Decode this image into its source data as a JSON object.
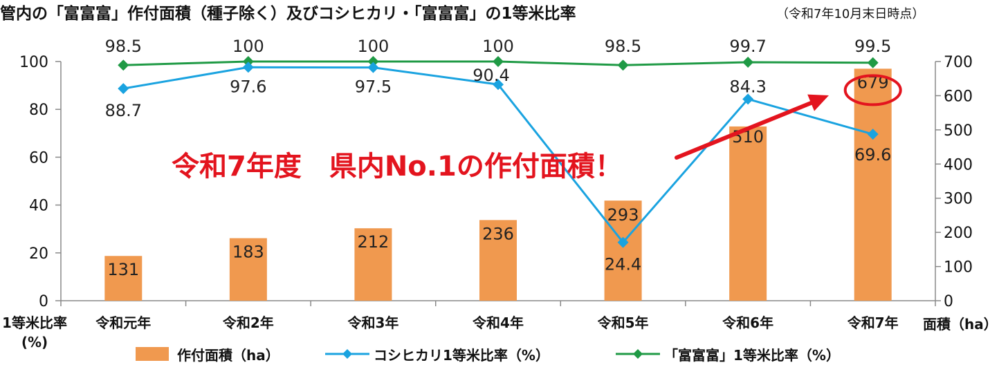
{
  "title": "管内の「富富富」作付面積（種子除く）及びコシヒカリ・「富富富」の1等米比率",
  "note": "（令和7年10月末日時点）",
  "callout": "令和7年度　県内No.1の作付面積！",
  "colors": {
    "bar": "#f0994f",
    "koshihikari": "#1aa3e0",
    "fufufu": "#1f9a45",
    "callout": "#e3141e",
    "axis": "#888888"
  },
  "chart_data": {
    "type": "bar",
    "categories": [
      "令和元年",
      "令和2年",
      "令和3年",
      "令和4年",
      "令和5年",
      "令和6年",
      "令和7年"
    ],
    "y_left": {
      "label": "1等米比率(%)",
      "ylim": [
        0,
        100
      ],
      "ticks": [
        0,
        20,
        40,
        60,
        80,
        100
      ]
    },
    "y_right": {
      "label": "面積（ha）",
      "ylim": [
        0,
        700
      ],
      "ticks": [
        0,
        100,
        200,
        300,
        400,
        500,
        600,
        700
      ]
    },
    "grid": false,
    "legend_position": "bottom",
    "series": [
      {
        "name": "作付面積（ha）",
        "type": "bar",
        "axis": "right",
        "values": [
          131,
          183,
          212,
          236,
          293,
          510,
          679
        ]
      },
      {
        "name": "コシヒカリ1等米比率（%）",
        "type": "line",
        "marker": "diamond",
        "axis": "left",
        "values": [
          88.7,
          97.6,
          97.5,
          90.4,
          24.4,
          84.3,
          69.6
        ]
      },
      {
        "name": "「富富富」1等米比率（%）",
        "type": "line",
        "marker": "diamond",
        "axis": "left",
        "values": [
          98.5,
          100,
          100,
          100,
          98.5,
          99.7,
          99.5
        ]
      }
    ],
    "highlight": {
      "category": "令和7年",
      "value": 679
    }
  }
}
